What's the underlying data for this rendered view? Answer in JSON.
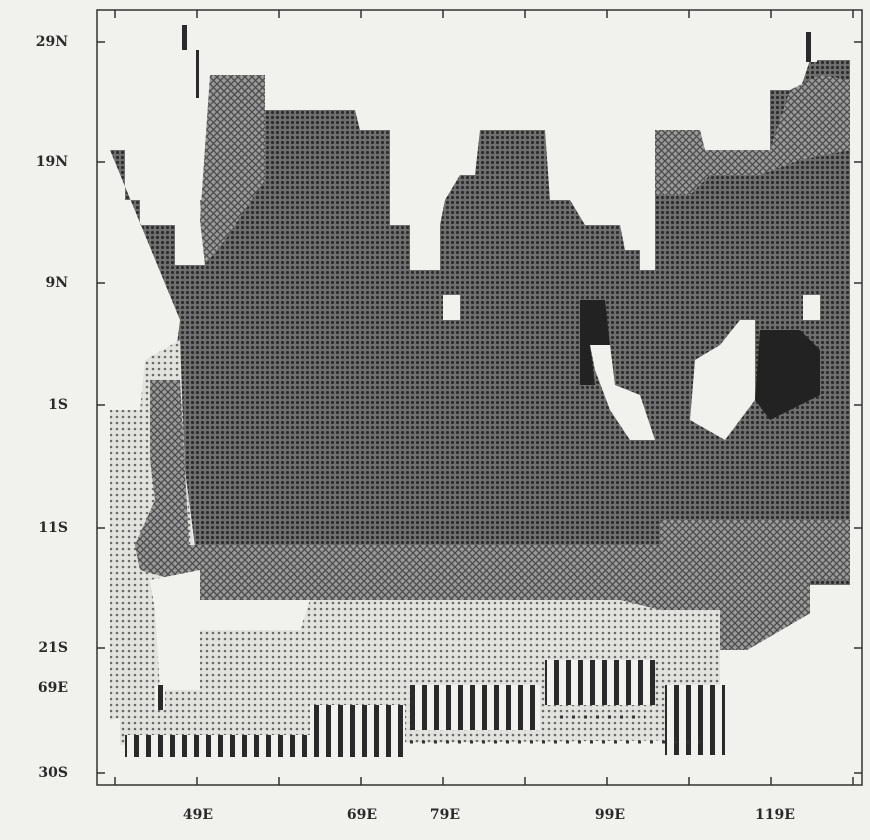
{
  "y_labels": [
    "29N",
    "19N",
    "9N",
    "1S",
    "11S",
    "21S",
    "69E",
    "30S"
  ],
  "x_labels": [
    "49E",
    "69E",
    "79E",
    "99E",
    "119E"
  ]
}
